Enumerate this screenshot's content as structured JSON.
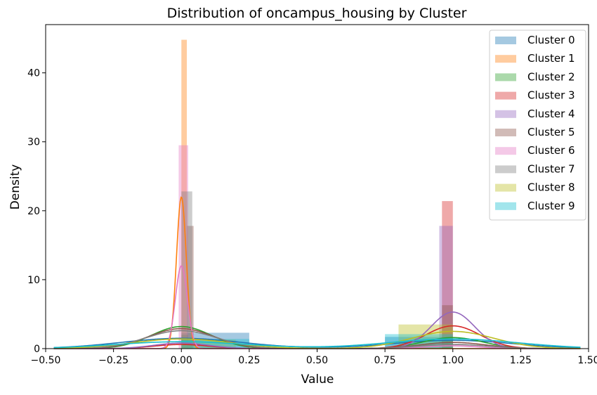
{
  "chart_data": {
    "type": "histogram+kde",
    "title": "Distribution of oncampus_housing by Cluster",
    "xlabel": "Value",
    "ylabel": "Density",
    "xlim": [
      -0.5,
      1.5
    ],
    "ylim": [
      0,
      47
    ],
    "xticks": [
      -0.5,
      -0.25,
      0.0,
      0.25,
      0.5,
      0.75,
      1.0,
      1.25,
      1.5
    ],
    "xtick_labels": [
      "−0.50",
      "−0.25",
      "0.00",
      "0.25",
      "0.50",
      "0.75",
      "1.00",
      "1.25",
      "1.50"
    ],
    "yticks": [
      0,
      10,
      20,
      30,
      40
    ],
    "ytick_labels": [
      "0",
      "10",
      "20",
      "30",
      "40"
    ],
    "legend_position": "top-right",
    "series": [
      {
        "name": "Cluster 0",
        "color": "#1f77b4",
        "bars": [
          {
            "x0": 0.0,
            "x1": 0.25,
            "h": 2.3
          },
          {
            "x0": 0.75,
            "x1": 1.0,
            "h": 1.7
          }
        ],
        "kde": [
          {
            "mu": 0.0,
            "sigma": 0.22,
            "peak": 1.5
          },
          {
            "mu": 1.0,
            "sigma": 0.22,
            "peak": 1.2
          }
        ]
      },
      {
        "name": "Cluster 1",
        "color": "#ff7f0e",
        "bars": [
          {
            "x0": 0.0,
            "x1": 0.02,
            "h": 44.8
          }
        ],
        "kde": [
          {
            "mu": 0.0,
            "sigma": 0.018,
            "peak": 22.0
          }
        ]
      },
      {
        "name": "Cluster 2",
        "color": "#2ca02c",
        "bars": [
          {
            "x0": 0.0,
            "x1": 0.025,
            "h": 2.0
          },
          {
            "x0": 0.975,
            "x1": 1.0,
            "h": 1.0
          }
        ],
        "kde": [
          {
            "mu": 0.0,
            "sigma": 0.11,
            "peak": 3.2
          },
          {
            "mu": 1.0,
            "sigma": 0.11,
            "peak": 1.6
          }
        ]
      },
      {
        "name": "Cluster 3",
        "color": "#d62728",
        "bars": [
          {
            "x0": 0.96,
            "x1": 1.0,
            "h": 21.4
          }
        ],
        "kde": [
          {
            "mu": 0.0,
            "sigma": 0.1,
            "peak": 0.6
          },
          {
            "mu": 1.0,
            "sigma": 0.1,
            "peak": 3.3
          }
        ]
      },
      {
        "name": "Cluster 4",
        "color": "#9467bd",
        "bars": [
          {
            "x0": 0.95,
            "x1": 1.0,
            "h": 17.8
          }
        ],
        "kde": [
          {
            "mu": 0.0,
            "sigma": 0.1,
            "peak": 0.8
          },
          {
            "mu": 1.0,
            "sigma": 0.08,
            "peak": 5.3
          }
        ]
      },
      {
        "name": "Cluster 5",
        "color": "#8c564b",
        "bars": [
          {
            "x0": 0.02,
            "x1": 0.045,
            "h": 17.8
          },
          {
            "x0": 0.96,
            "x1": 1.0,
            "h": 6.3
          }
        ],
        "kde": [
          {
            "mu": 0.0,
            "sigma": 0.12,
            "peak": 2.9
          },
          {
            "mu": 1.0,
            "sigma": 0.12,
            "peak": 0.9
          }
        ]
      },
      {
        "name": "Cluster 6",
        "color": "#e377c2",
        "bars": [
          {
            "x0": -0.01,
            "x1": 0.025,
            "h": 29.5
          }
        ],
        "kde": [
          {
            "mu": 0.0,
            "sigma": 0.022,
            "peak": 12.0
          },
          {
            "mu": 1.0,
            "sigma": 0.1,
            "peak": 0.4
          }
        ]
      },
      {
        "name": "Cluster 7",
        "color": "#7f7f7f",
        "bars": [
          {
            "x0": 0.0,
            "x1": 0.04,
            "h": 22.8
          },
          {
            "x0": 0.96,
            "x1": 1.0,
            "h": 1.4
          }
        ],
        "kde": [
          {
            "mu": 0.0,
            "sigma": 0.13,
            "peak": 2.6
          },
          {
            "mu": 1.0,
            "sigma": 0.13,
            "peak": 0.6
          }
        ]
      },
      {
        "name": "Cluster 8",
        "color": "#bcbd22",
        "bars": [
          {
            "x0": 0.8,
            "x1": 1.0,
            "h": 3.5
          },
          {
            "x0": 0.0,
            "x1": 0.2,
            "h": 1.3
          }
        ],
        "kde": [
          {
            "mu": 0.0,
            "sigma": 0.18,
            "peak": 1.4
          },
          {
            "mu": 1.0,
            "sigma": 0.15,
            "peak": 2.5
          }
        ]
      },
      {
        "name": "Cluster 9",
        "color": "#17becf",
        "bars": [
          {
            "x0": 0.0,
            "x1": 0.25,
            "h": 1.4
          },
          {
            "x0": 0.75,
            "x1": 1.0,
            "h": 2.1
          }
        ],
        "kde": [
          {
            "mu": 0.0,
            "sigma": 0.24,
            "peak": 1.0
          },
          {
            "mu": 1.0,
            "sigma": 0.24,
            "peak": 1.4
          }
        ]
      }
    ]
  }
}
